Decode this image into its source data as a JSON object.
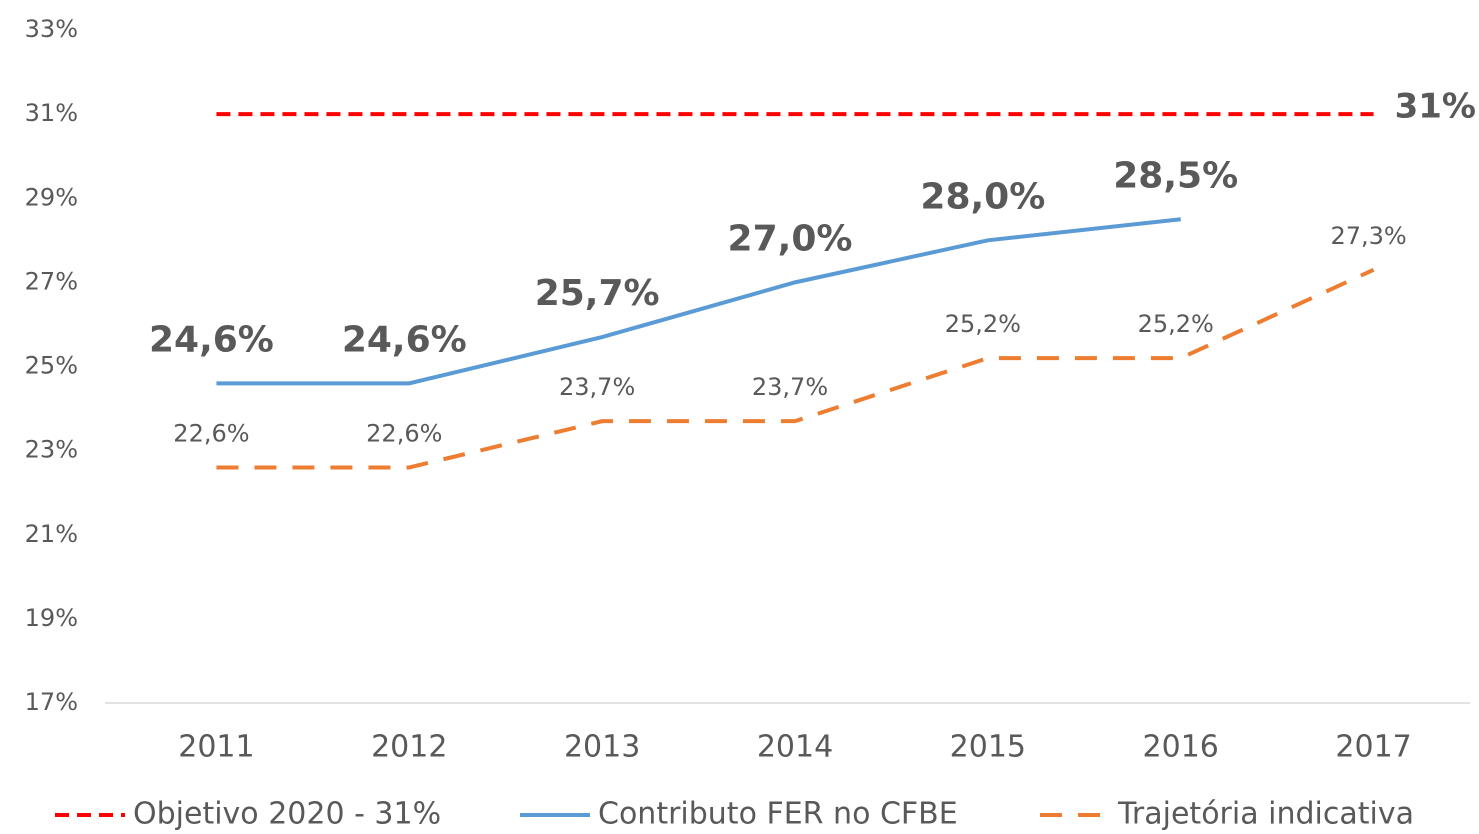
{
  "chart_data": {
    "type": "line",
    "categories": [
      "2011",
      "2012",
      "2013",
      "2014",
      "2015",
      "2016",
      "2017"
    ],
    "ylim": [
      17,
      33
    ],
    "yticks": [
      {
        "value": 17,
        "label": "17%"
      },
      {
        "value": 19,
        "label": "19%"
      },
      {
        "value": 21,
        "label": "21%"
      },
      {
        "value": 23,
        "label": "23%"
      },
      {
        "value": 25,
        "label": "25%"
      },
      {
        "value": 27,
        "label": "27%"
      },
      {
        "value": 29,
        "label": "29%"
      },
      {
        "value": 31,
        "label": "31%"
      },
      {
        "value": 33,
        "label": "33%"
      }
    ],
    "grid": false,
    "legend": "bottom",
    "series": [
      {
        "name": "Objetivo 2020 - 31%",
        "color": "#ff0000",
        "dash": "short",
        "values": [
          31,
          31,
          31,
          31,
          31,
          31,
          31
        ],
        "value_labels": [
          null,
          null,
          null,
          null,
          null,
          null,
          "31%"
        ]
      },
      {
        "name": "Contributo FER no CFBE",
        "color": "#5b9bd5",
        "dash": "solid",
        "values": [
          24.6,
          24.6,
          25.7,
          27.0,
          28.0,
          28.5,
          null
        ],
        "value_labels": [
          "24,6%",
          "24,6%",
          "25,7%",
          "27,0%",
          "28,0%",
          "28,5%",
          null
        ]
      },
      {
        "name": "Trajetória indicativa",
        "color": "#ed7d31",
        "dash": "long",
        "values": [
          22.6,
          22.6,
          23.7,
          23.7,
          25.2,
          25.2,
          27.3
        ],
        "value_labels": [
          "22,6%",
          "22,6%",
          "23,7%",
          "23,7%",
          "25,2%",
          "25,2%",
          "27,3%"
        ]
      }
    ]
  }
}
